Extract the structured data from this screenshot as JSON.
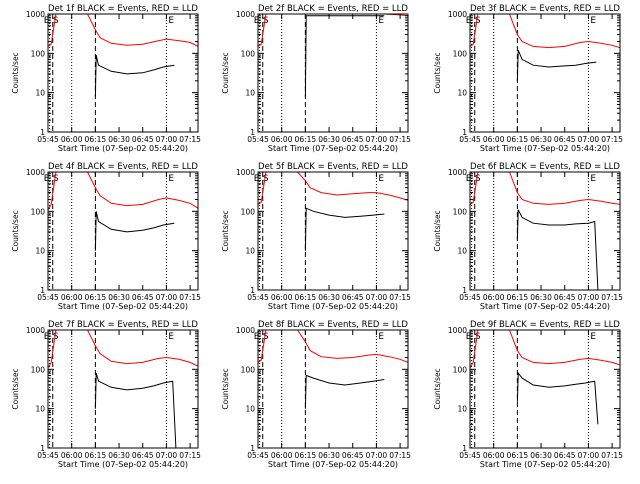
{
  "figure": {
    "common": {
      "type": "line",
      "y_scale": "log",
      "ylim": [
        1,
        1000
      ],
      "xlim_minutes": [
        345,
        440
      ],
      "x_ticks": [
        {
          "t": 345,
          "label": "05:45"
        },
        {
          "t": 360,
          "label": "06:00"
        },
        {
          "t": 375,
          "label": "06:15"
        },
        {
          "t": 390,
          "label": "06:30"
        },
        {
          "t": 405,
          "label": "06:45"
        },
        {
          "t": 420,
          "label": "07:00"
        },
        {
          "t": 435,
          "label": "07:15"
        }
      ],
      "y_ticks": [
        {
          "v": 1,
          "label": "1"
        },
        {
          "v": 10,
          "label": "10"
        },
        {
          "v": 100,
          "label": "100"
        },
        {
          "v": 1000,
          "label": "1000"
        }
      ],
      "xlabel": "Start Time (07-Sep-02 05:44:20)",
      "ylabel": "Counts/sec",
      "colors": {
        "events": "#000000",
        "lld": "#ff0000",
        "axes": "#000000"
      },
      "marker_text": {
        "e": "E",
        "s": "S"
      },
      "grid": false
    }
  },
  "chart_data": [
    {
      "title": "Det 1f BLACK = Events, RED = LLD",
      "type": "line",
      "series": [
        {
          "name": "Events",
          "color": "#000000",
          "points": [
            [
              375,
              8
            ],
            [
              375.5,
              90
            ],
            [
              377,
              50
            ],
            [
              385,
              35
            ],
            [
              395,
              30
            ],
            [
              405,
              32
            ],
            [
              412,
              38
            ],
            [
              418,
              45
            ],
            [
              425,
              50
            ]
          ]
        },
        {
          "name": "LLD",
          "color": "#ff0000",
          "points": [
            [
              345,
              150
            ],
            [
              347,
              170
            ],
            [
              350,
              1000
            ],
            [
              370,
              1000
            ],
            [
              375,
              400
            ],
            [
              378,
              250
            ],
            [
              385,
              180
            ],
            [
              395,
              160
            ],
            [
              405,
              170
            ],
            [
              415,
              210
            ],
            [
              420,
              230
            ],
            [
              428,
              210
            ],
            [
              435,
              190
            ],
            [
              440,
              150
            ]
          ]
        }
      ],
      "markers": {
        "e": [
          346,
          420
        ],
        "s": [
          348
        ]
      }
    },
    {
      "title": "Det 2f BLACK = Events, RED = LLD",
      "type": "line",
      "series": [
        {
          "name": "Events",
          "color": "#000000",
          "points": [
            [
              375,
              8
            ],
            [
              375.5,
              900
            ],
            [
              380,
              900
            ],
            [
              390,
              900
            ],
            [
              400,
              900
            ],
            [
              410,
              900
            ],
            [
              420,
              900
            ],
            [
              425,
              900
            ]
          ]
        },
        {
          "name": "LLD",
          "color": "#ff0000",
          "points": [
            [
              345,
              150
            ],
            [
              347,
              170
            ],
            [
              350,
              1000
            ],
            [
              370,
              1000
            ],
            [
              375,
              1000
            ],
            [
              385,
              1000
            ],
            [
              400,
              1000
            ],
            [
              415,
              1000
            ],
            [
              425,
              1000
            ],
            [
              435,
              950
            ],
            [
              440,
              900
            ]
          ]
        }
      ],
      "markers": {
        "e": [
          346,
          420
        ],
        "s": [
          348
        ]
      }
    },
    {
      "title": "Det 3f BLACK = Events, RED = LLD",
      "type": "line",
      "series": [
        {
          "name": "Events",
          "color": "#000000",
          "points": [
            [
              375,
              20
            ],
            [
              375.5,
              120
            ],
            [
              378,
              70
            ],
            [
              385,
              50
            ],
            [
              395,
              45
            ],
            [
              405,
              48
            ],
            [
              412,
              50
            ],
            [
              418,
              55
            ],
            [
              425,
              60
            ]
          ]
        },
        {
          "name": "LLD",
          "color": "#ff0000",
          "points": [
            [
              345,
              150
            ],
            [
              347,
              170
            ],
            [
              350,
              1000
            ],
            [
              370,
              1000
            ],
            [
              375,
              300
            ],
            [
              378,
              200
            ],
            [
              385,
              150
            ],
            [
              395,
              140
            ],
            [
              405,
              150
            ],
            [
              415,
              190
            ],
            [
              420,
              200
            ],
            [
              428,
              180
            ],
            [
              435,
              160
            ],
            [
              440,
              140
            ]
          ]
        }
      ],
      "markers": {
        "e": [
          346,
          420
        ],
        "s": [
          348
        ]
      }
    },
    {
      "title": "Det 4f BLACK = Events, RED = LLD",
      "type": "line",
      "series": [
        {
          "name": "Events",
          "color": "#000000",
          "points": [
            [
              375,
              10
            ],
            [
              375.5,
              100
            ],
            [
              377,
              55
            ],
            [
              385,
              35
            ],
            [
              395,
              30
            ],
            [
              405,
              33
            ],
            [
              412,
              38
            ],
            [
              418,
              45
            ],
            [
              425,
              50
            ]
          ]
        },
        {
          "name": "LLD",
          "color": "#ff0000",
          "points": [
            [
              345,
              110
            ],
            [
              347,
              150
            ],
            [
              350,
              1000
            ],
            [
              370,
              1000
            ],
            [
              375,
              400
            ],
            [
              378,
              250
            ],
            [
              385,
              160
            ],
            [
              395,
              140
            ],
            [
              405,
              150
            ],
            [
              415,
              200
            ],
            [
              420,
              220
            ],
            [
              428,
              190
            ],
            [
              435,
              160
            ],
            [
              440,
              120
            ]
          ]
        }
      ],
      "markers": {
        "e": [
          346,
          420
        ],
        "s": [
          348
        ]
      }
    },
    {
      "title": "Det 5f BLACK = Events, RED = LLD",
      "type": "line",
      "series": [
        {
          "name": "Events",
          "color": "#000000",
          "points": [
            [
              375,
              10
            ],
            [
              375.5,
              120
            ],
            [
              380,
              100
            ],
            [
              390,
              80
            ],
            [
              400,
              70
            ],
            [
              410,
              75
            ],
            [
              418,
              80
            ],
            [
              425,
              85
            ]
          ]
        },
        {
          "name": "LLD",
          "color": "#ff0000",
          "points": [
            [
              345,
              150
            ],
            [
              347,
              170
            ],
            [
              350,
              1000
            ],
            [
              370,
              1000
            ],
            [
              375,
              600
            ],
            [
              378,
              400
            ],
            [
              385,
              300
            ],
            [
              395,
              260
            ],
            [
              405,
              280
            ],
            [
              415,
              300
            ],
            [
              420,
              300
            ],
            [
              428,
              260
            ],
            [
              435,
              220
            ],
            [
              440,
              190
            ]
          ]
        }
      ],
      "markers": {
        "e": [
          346,
          420
        ],
        "s": [
          348
        ]
      }
    },
    {
      "title": "Det 6f BLACK = Events, RED = LLD",
      "type": "line",
      "series": [
        {
          "name": "Events",
          "color": "#000000",
          "points": [
            [
              375,
              20
            ],
            [
              375.5,
              110
            ],
            [
              378,
              70
            ],
            [
              385,
              50
            ],
            [
              395,
              45
            ],
            [
              405,
              45
            ],
            [
              412,
              48
            ],
            [
              420,
              50
            ],
            [
              424,
              55
            ],
            [
              426,
              1
            ]
          ]
        },
        {
          "name": "LLD",
          "color": "#ff0000",
          "points": [
            [
              345,
              150
            ],
            [
              347,
              170
            ],
            [
              350,
              1000
            ],
            [
              370,
              1000
            ],
            [
              375,
              300
            ],
            [
              378,
              200
            ],
            [
              385,
              160
            ],
            [
              395,
              150
            ],
            [
              405,
              160
            ],
            [
              415,
              190
            ],
            [
              420,
              200
            ],
            [
              428,
              180
            ],
            [
              435,
              160
            ],
            [
              440,
              150
            ]
          ]
        }
      ],
      "markers": {
        "e": [
          346,
          420
        ],
        "s": [
          348
        ]
      }
    },
    {
      "title": "Det 7f BLACK = Events, RED = LLD",
      "type": "line",
      "series": [
        {
          "name": "Events",
          "color": "#000000",
          "points": [
            [
              375,
              10
            ],
            [
              375.5,
              80
            ],
            [
              377,
              50
            ],
            [
              385,
              35
            ],
            [
              395,
              30
            ],
            [
              405,
              33
            ],
            [
              412,
              38
            ],
            [
              418,
              45
            ],
            [
              424,
              50
            ],
            [
              426,
              1
            ]
          ]
        },
        {
          "name": "LLD",
          "color": "#ff0000",
          "points": [
            [
              345,
              110
            ],
            [
              347,
              150
            ],
            [
              350,
              1000
            ],
            [
              370,
              1000
            ],
            [
              375,
              400
            ],
            [
              378,
              250
            ],
            [
              385,
              160
            ],
            [
              395,
              140
            ],
            [
              405,
              150
            ],
            [
              415,
              190
            ],
            [
              420,
              200
            ],
            [
              428,
              180
            ],
            [
              435,
              150
            ],
            [
              440,
              120
            ]
          ]
        }
      ],
      "markers": {
        "e": [
          346,
          420
        ],
        "s": [
          348
        ]
      }
    },
    {
      "title": "Det 8f BLACK = Events, RED = LLD",
      "type": "line",
      "series": [
        {
          "name": "Events",
          "color": "#000000",
          "points": [
            [
              375,
              10
            ],
            [
              375.5,
              70
            ],
            [
              380,
              60
            ],
            [
              390,
              45
            ],
            [
              400,
              40
            ],
            [
              410,
              45
            ],
            [
              418,
              50
            ],
            [
              425,
              55
            ]
          ]
        },
        {
          "name": "LLD",
          "color": "#ff0000",
          "points": [
            [
              345,
              150
            ],
            [
              347,
              170
            ],
            [
              350,
              1000
            ],
            [
              370,
              1000
            ],
            [
              375,
              500
            ],
            [
              378,
              300
            ],
            [
              385,
              210
            ],
            [
              395,
              190
            ],
            [
              405,
              200
            ],
            [
              415,
              230
            ],
            [
              420,
              240
            ],
            [
              428,
              210
            ],
            [
              435,
              180
            ],
            [
              440,
              150
            ]
          ]
        }
      ],
      "markers": {
        "e": [
          346,
          420
        ],
        "s": [
          348
        ]
      }
    },
    {
      "title": "Det 9f BLACK = Events, RED = LLD",
      "type": "line",
      "series": [
        {
          "name": "Events",
          "color": "#000000",
          "points": [
            [
              375,
              15
            ],
            [
              375.5,
              80
            ],
            [
              378,
              60
            ],
            [
              385,
              40
            ],
            [
              395,
              35
            ],
            [
              405,
              38
            ],
            [
              412,
              42
            ],
            [
              418,
              45
            ],
            [
              424,
              50
            ],
            [
              426,
              4
            ]
          ]
        },
        {
          "name": "LLD",
          "color": "#ff0000",
          "points": [
            [
              345,
              110
            ],
            [
              347,
              150
            ],
            [
              350,
              1000
            ],
            [
              370,
              1000
            ],
            [
              375,
              300
            ],
            [
              378,
              200
            ],
            [
              385,
              150
            ],
            [
              395,
              140
            ],
            [
              405,
              150
            ],
            [
              415,
              180
            ],
            [
              420,
              190
            ],
            [
              428,
              170
            ],
            [
              435,
              150
            ],
            [
              440,
              130
            ]
          ]
        }
      ],
      "markers": {
        "e": [
          346,
          420
        ],
        "s": [
          348
        ]
      }
    }
  ]
}
